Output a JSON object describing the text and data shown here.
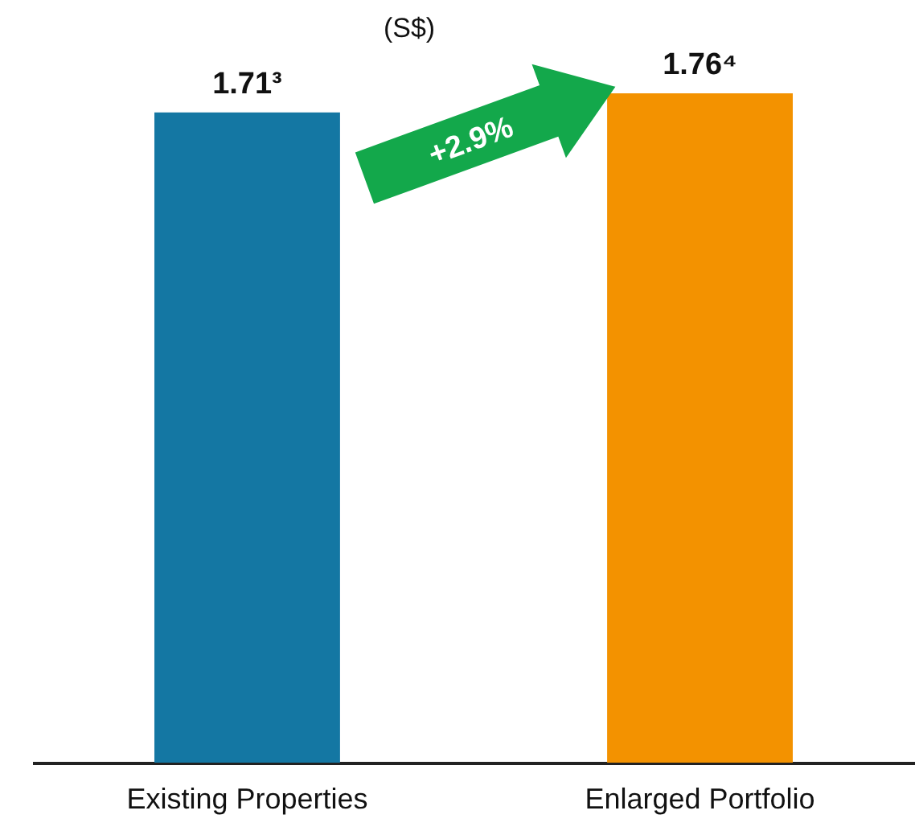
{
  "chart_data": {
    "type": "bar",
    "title": "(S$)",
    "categories": [
      "Existing Properties",
      "Enlarged Portfolio"
    ],
    "values": [
      1.71,
      1.76
    ],
    "colors": [
      "#1477a3",
      "#f39200"
    ],
    "value_labels": [
      "1.71³",
      "1.76⁴"
    ],
    "tick_labels": "x",
    "annotations": [
      "+2.9%"
    ]
  }
}
